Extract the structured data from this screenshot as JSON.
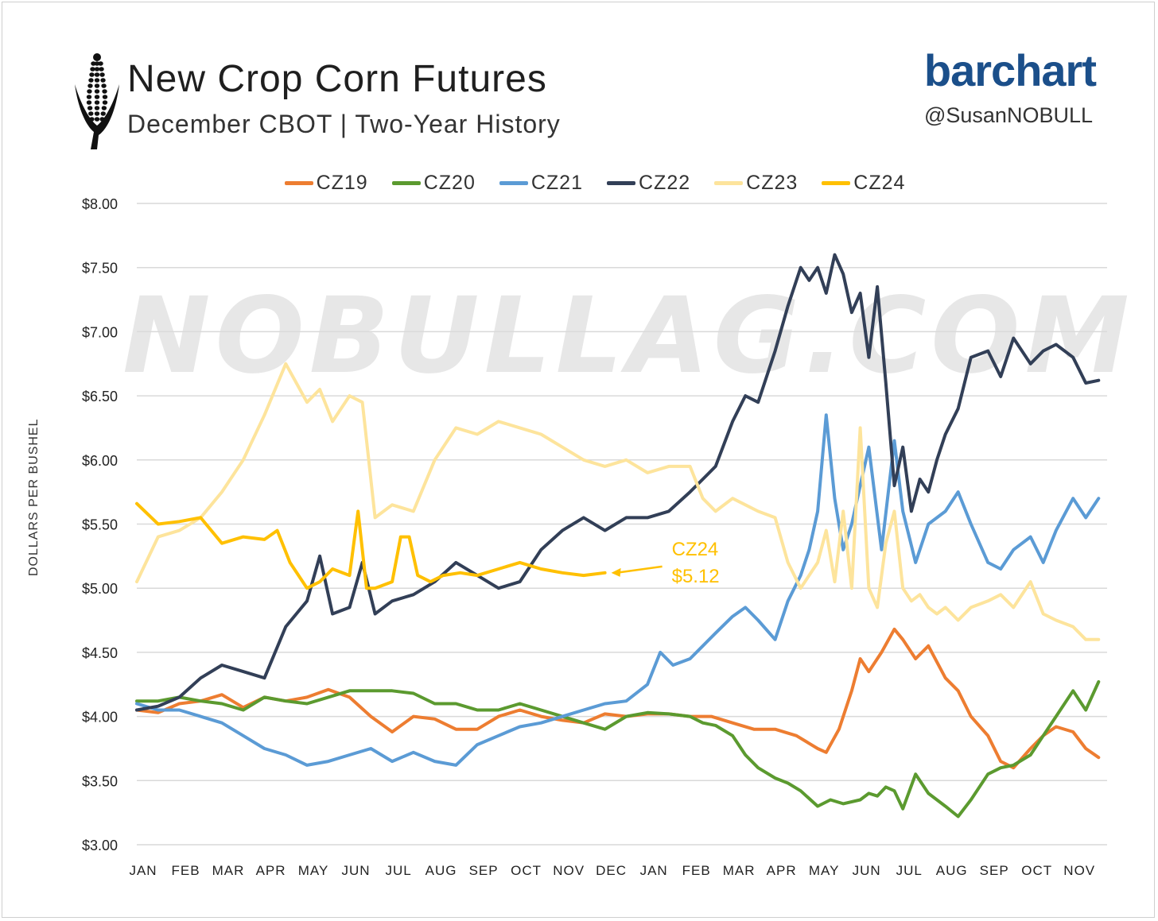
{
  "header": {
    "title": "New Crop Corn Futures",
    "subtitle": "December CBOT | Two-Year History",
    "brand": "barchart",
    "handle": "@SusanNOBULL",
    "watermark": "NOBULLAG.COM"
  },
  "chart_data": {
    "type": "line",
    "ylabel": "DOLLARS PER BUSHEL",
    "ylim": [
      3.0,
      8.0
    ],
    "yticks": [
      3.0,
      3.5,
      4.0,
      4.5,
      5.0,
      5.5,
      6.0,
      6.5,
      7.0,
      7.5,
      8.0
    ],
    "ytick_labels": [
      "$3.00",
      "$3.50",
      "$4.00",
      "$4.50",
      "$5.00",
      "$5.50",
      "$6.00",
      "$6.50",
      "$7.00",
      "$7.50",
      "$8.00"
    ],
    "xlim": [
      0,
      22.8
    ],
    "x_tick_labels": [
      "JAN",
      "FEB",
      "MAR",
      "APR",
      "MAY",
      "JUN",
      "JUL",
      "AUG",
      "SEP",
      "OCT",
      "NOV",
      "DEC",
      "JAN",
      "FEB",
      "MAR",
      "APR",
      "MAY",
      "JUN",
      "JUL",
      "AUG",
      "SEP",
      "OCT",
      "NOV"
    ],
    "grid": true,
    "legend_position": "top-center",
    "annotation": {
      "series": "CZ24",
      "label": "CZ24",
      "value_label": "$5.12"
    },
    "series": [
      {
        "name": "CZ19",
        "color": "#ed7d31",
        "x": [
          0,
          0.5,
          1,
          1.5,
          2,
          2.5,
          3,
          3.5,
          4,
          4.5,
          5,
          5.5,
          6,
          6.5,
          7,
          7.5,
          8,
          8.5,
          9,
          9.5,
          10,
          10.5,
          11,
          11.5,
          12,
          12.5,
          13,
          13.5,
          14,
          14.5,
          15,
          15.5,
          16,
          16.2,
          16.5,
          16.8,
          17,
          17.2,
          17.5,
          17.8,
          18,
          18.3,
          18.6,
          19,
          19.3,
          19.6,
          20,
          20.3,
          20.6,
          21,
          21.3,
          21.6,
          22,
          22.3,
          22.6
        ],
        "y": [
          4.05,
          4.03,
          4.1,
          4.12,
          4.17,
          4.07,
          4.15,
          4.12,
          4.15,
          4.21,
          4.15,
          4.0,
          3.88,
          4.0,
          3.98,
          3.9,
          3.9,
          4.0,
          4.05,
          4.0,
          3.97,
          3.95,
          4.02,
          4.0,
          4.02,
          4.02,
          4.0,
          4.0,
          3.95,
          3.9,
          3.9,
          3.85,
          3.75,
          3.72,
          3.9,
          4.2,
          4.45,
          4.35,
          4.5,
          4.68,
          4.6,
          4.45,
          4.55,
          4.3,
          4.2,
          4.0,
          3.85,
          3.65,
          3.6,
          3.75,
          3.85,
          3.92,
          3.88,
          3.75,
          3.68
        ]
      },
      {
        "name": "CZ20",
        "color": "#5b9a2f",
        "x": [
          0,
          0.5,
          1,
          1.5,
          2,
          2.5,
          3,
          3.5,
          4,
          4.5,
          5,
          5.5,
          6,
          6.5,
          7,
          7.5,
          8,
          8.5,
          9,
          9.5,
          10,
          10.5,
          11,
          11.5,
          12,
          12.5,
          13,
          13.3,
          13.6,
          14,
          14.3,
          14.6,
          15,
          15.3,
          15.6,
          16,
          16.3,
          16.6,
          17,
          17.2,
          17.4,
          17.6,
          17.8,
          18,
          18.3,
          18.6,
          19,
          19.3,
          19.6,
          20,
          20.3,
          20.6,
          21,
          21.3,
          21.6,
          22,
          22.3,
          22.6
        ],
        "y": [
          4.12,
          4.12,
          4.15,
          4.12,
          4.1,
          4.05,
          4.15,
          4.12,
          4.1,
          4.15,
          4.2,
          4.2,
          4.2,
          4.18,
          4.1,
          4.1,
          4.05,
          4.05,
          4.1,
          4.05,
          4.0,
          3.95,
          3.9,
          4.0,
          4.03,
          4.02,
          4.0,
          3.95,
          3.93,
          3.85,
          3.7,
          3.6,
          3.52,
          3.48,
          3.42,
          3.3,
          3.35,
          3.32,
          3.35,
          3.4,
          3.38,
          3.45,
          3.42,
          3.28,
          3.55,
          3.4,
          3.3,
          3.22,
          3.35,
          3.55,
          3.6,
          3.62,
          3.7,
          3.85,
          4.0,
          4.2,
          4.05,
          4.27
        ]
      },
      {
        "name": "CZ21",
        "color": "#5b9bd5",
        "x": [
          0,
          0.5,
          1,
          1.5,
          2,
          2.5,
          3,
          3.5,
          4,
          4.5,
          5,
          5.5,
          6,
          6.5,
          7,
          7.5,
          8,
          8.5,
          9,
          9.5,
          10,
          10.5,
          11,
          11.5,
          12,
          12.3,
          12.6,
          13,
          13.3,
          13.6,
          14,
          14.3,
          14.6,
          15,
          15.3,
          15.6,
          15.8,
          16,
          16.2,
          16.4,
          16.6,
          16.8,
          17,
          17.2,
          17.5,
          17.8,
          18,
          18.3,
          18.6,
          19,
          19.3,
          19.6,
          20,
          20.3,
          20.6,
          21,
          21.3,
          21.6,
          22,
          22.3,
          22.6
        ],
        "y": [
          4.1,
          4.05,
          4.05,
          4.0,
          3.95,
          3.85,
          3.75,
          3.7,
          3.62,
          3.65,
          3.7,
          3.75,
          3.65,
          3.72,
          3.65,
          3.62,
          3.78,
          3.85,
          3.92,
          3.95,
          4.0,
          4.05,
          4.1,
          4.12,
          4.25,
          4.5,
          4.4,
          4.45,
          4.55,
          4.65,
          4.78,
          4.85,
          4.75,
          4.6,
          4.9,
          5.1,
          5.3,
          5.6,
          6.35,
          5.7,
          5.3,
          5.5,
          5.8,
          6.1,
          5.3,
          6.15,
          5.6,
          5.2,
          5.5,
          5.6,
          5.75,
          5.5,
          5.2,
          5.15,
          5.3,
          5.4,
          5.2,
          5.45,
          5.7,
          5.55,
          5.7
        ]
      },
      {
        "name": "CZ22",
        "color": "#323f57",
        "x": [
          0,
          0.5,
          1,
          1.5,
          2,
          2.5,
          3,
          3.5,
          4,
          4.3,
          4.6,
          5,
          5.3,
          5.6,
          6,
          6.5,
          7,
          7.5,
          8,
          8.5,
          9,
          9.5,
          10,
          10.5,
          11,
          11.5,
          12,
          12.5,
          13,
          13.3,
          13.6,
          14,
          14.3,
          14.6,
          15,
          15.3,
          15.6,
          15.8,
          16,
          16.2,
          16.4,
          16.6,
          16.8,
          17,
          17.2,
          17.4,
          17.6,
          17.8,
          18,
          18.2,
          18.4,
          18.6,
          18.8,
          19,
          19.3,
          19.6,
          20,
          20.3,
          20.6,
          21,
          21.3,
          21.6,
          22,
          22.3,
          22.6
        ],
        "y": [
          4.05,
          4.08,
          4.15,
          4.3,
          4.4,
          4.35,
          4.3,
          4.7,
          4.9,
          5.25,
          4.8,
          4.85,
          5.2,
          4.8,
          4.9,
          4.95,
          5.05,
          5.2,
          5.1,
          5.0,
          5.05,
          5.3,
          5.45,
          5.55,
          5.45,
          5.55,
          5.55,
          5.6,
          5.75,
          5.85,
          5.95,
          6.3,
          6.5,
          6.45,
          6.85,
          7.2,
          7.5,
          7.4,
          7.5,
          7.3,
          7.6,
          7.45,
          7.15,
          7.3,
          6.8,
          7.35,
          6.6,
          5.8,
          6.1,
          5.6,
          5.85,
          5.75,
          6.0,
          6.2,
          6.4,
          6.8,
          6.85,
          6.65,
          6.95,
          6.75,
          6.85,
          6.9,
          6.8,
          6.6,
          6.62
        ]
      },
      {
        "name": "CZ23",
        "color": "#fde49c",
        "x": [
          0,
          0.5,
          1,
          1.5,
          2,
          2.5,
          3,
          3.5,
          4,
          4.3,
          4.6,
          5,
          5.3,
          5.6,
          6,
          6.5,
          7,
          7.5,
          8,
          8.5,
          9,
          9.5,
          10,
          10.5,
          11,
          11.5,
          12,
          12.5,
          13,
          13.3,
          13.6,
          14,
          14.3,
          14.6,
          15,
          15.3,
          15.6,
          16,
          16.2,
          16.4,
          16.6,
          16.8,
          17,
          17.2,
          17.4,
          17.6,
          17.8,
          18,
          18.2,
          18.4,
          18.6,
          18.8,
          19,
          19.3,
          19.6,
          20,
          20.3,
          20.6,
          21,
          21.3,
          21.6,
          22,
          22.3,
          22.6
        ],
        "y": [
          5.05,
          5.4,
          5.45,
          5.55,
          5.75,
          6.0,
          6.35,
          6.75,
          6.45,
          6.55,
          6.3,
          6.5,
          6.45,
          5.55,
          5.65,
          5.6,
          6.0,
          6.25,
          6.2,
          6.3,
          6.25,
          6.2,
          6.1,
          6.0,
          5.95,
          6.0,
          5.9,
          5.95,
          5.95,
          5.7,
          5.6,
          5.7,
          5.65,
          5.6,
          5.55,
          5.2,
          5.0,
          5.2,
          5.45,
          5.05,
          5.6,
          5.0,
          6.25,
          5.0,
          4.85,
          5.35,
          5.6,
          5.0,
          4.9,
          4.95,
          4.85,
          4.8,
          4.85,
          4.75,
          4.85,
          4.9,
          4.95,
          4.85,
          5.05,
          4.8,
          4.75,
          4.7,
          4.6,
          4.6
        ]
      },
      {
        "name": "CZ24",
        "color": "#ffc000",
        "x": [
          0,
          0.5,
          1,
          1.5,
          2,
          2.5,
          3,
          3.3,
          3.6,
          4,
          4.3,
          4.6,
          5,
          5.2,
          5.4,
          5.6,
          6,
          6.2,
          6.4,
          6.6,
          6.9,
          7.2,
          7.6,
          8,
          8.5,
          9,
          9.5,
          10,
          10.5,
          11
        ],
        "y": [
          5.66,
          5.5,
          5.52,
          5.55,
          5.35,
          5.4,
          5.38,
          5.45,
          5.2,
          5.0,
          5.05,
          5.15,
          5.1,
          5.6,
          5.0,
          5.0,
          5.05,
          5.4,
          5.4,
          5.1,
          5.05,
          5.1,
          5.12,
          5.1,
          5.15,
          5.2,
          5.15,
          5.12,
          5.1,
          5.12
        ]
      }
    ]
  }
}
